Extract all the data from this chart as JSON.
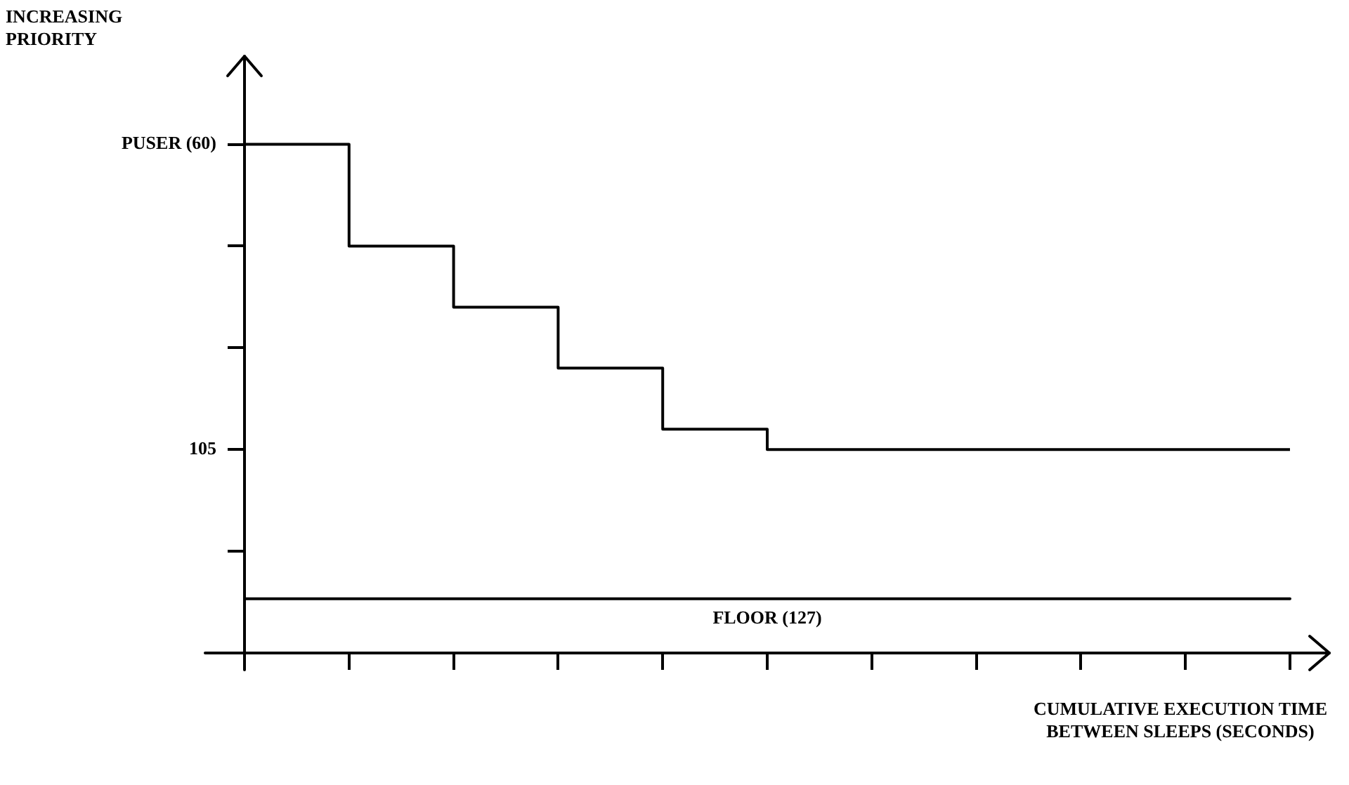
{
  "chart_data": {
    "type": "step",
    "xlabel": "CUMULATIVE EXECUTION TIME\nBETWEEN SLEEPS (SECONDS)",
    "ylabel": "INCREASING\nPRIORITY",
    "categories": [
      null,
      null,
      null,
      null,
      null,
      null,
      null,
      null,
      null,
      null,
      null
    ],
    "series": [
      {
        "color": "#000000",
        "values": [
          60,
          75,
          84,
          93,
          102,
          105,
          105,
          105,
          105,
          105,
          105
        ]
      }
    ],
    "ylim": [
      135,
      47
    ],
    "yticks": [
      {
        "value": 60,
        "label": "PUSER (60)"
      },
      {
        "value": 75,
        "label": null
      },
      {
        "value": 90,
        "label": null
      },
      {
        "value": 105,
        "label": "105"
      },
      {
        "value": 120,
        "label": null
      },
      {
        "value": 135,
        "label": null
      }
    ],
    "ref_lines": [
      {
        "axis": "y",
        "value": 127,
        "label": "FLOOR (127)",
        "color": "#000000"
      }
    ],
    "tick_labels": "y",
    "legend": false,
    "marker": "none",
    "line_style": "solid"
  }
}
